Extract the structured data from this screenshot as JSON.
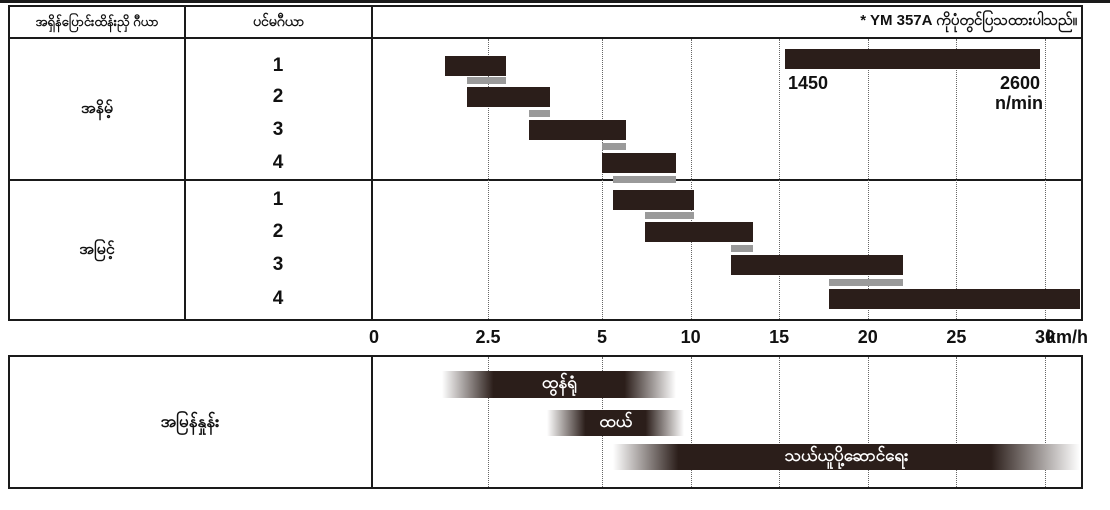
{
  "top_note": "* YM 357A ကိုပုံတွင်ပြသထားပါသည်။",
  "table": {
    "shift_gear_header": "အရှိန်ပြောင်းထိန်းညှိ ဂီယာ",
    "main_gear_header": "ပင်မဂီယာ",
    "low_range_label": "အနိမ့်",
    "high_range_label": "အမြင့်",
    "speed_row_label": "အမြန်နှုန်း"
  },
  "axis": {
    "unit": "km/h"
  },
  "rpm_legend": {
    "min_label": "1450",
    "max_label": "2600",
    "unit_label": "n/min"
  },
  "colors": {
    "bar": "#2b1e1a",
    "overlap": "#9a9a9a",
    "border": "#1a1a1a"
  },
  "chart_data": {
    "type": "bar",
    "subtype": "horizontal-speed-range-gantt",
    "title": "",
    "xlabel": "km/h",
    "x_ticks": [
      0,
      2.5,
      5,
      10,
      15,
      20,
      25,
      30
    ],
    "x_tick_labels": [
      "0",
      "2.5",
      "5",
      "10",
      "15",
      "20",
      "25",
      "30"
    ],
    "x_axis_note": "non-linear axis: 0-5 km/h segment expanded relative to 5-30 km/h",
    "grid": "dotted vertical lines at each tick above 0",
    "series": [
      {
        "range": "low",
        "gear": "1",
        "speed_kmh": [
          1.55,
          2.9
        ]
      },
      {
        "range": "low",
        "gear": "2",
        "speed_kmh": [
          2.05,
          3.85
        ]
      },
      {
        "range": "low",
        "gear": "3",
        "speed_kmh": [
          3.4,
          6.35
        ]
      },
      {
        "range": "low",
        "gear": "4",
        "speed_kmh": [
          5.0,
          9.2
        ]
      },
      {
        "range": "high",
        "gear": "1",
        "speed_kmh": [
          5.6,
          10.2
        ]
      },
      {
        "range": "high",
        "gear": "2",
        "speed_kmh": [
          7.45,
          13.5
        ]
      },
      {
        "range": "high",
        "gear": "3",
        "speed_kmh": [
          12.3,
          22.0
        ]
      },
      {
        "range": "high",
        "gear": "4",
        "speed_kmh": [
          17.8,
          32.0
        ]
      }
    ],
    "overlap_bars_note": "gray bars mark the overlap between each gear and the next higher gear",
    "engine_rpm_range": [
      1450,
      2600
    ],
    "engine_rpm_unit": "n/min",
    "work_bands": [
      {
        "label": "ထွန်ရုံ",
        "speed_kmh": [
          1.5,
          9.2
        ]
      },
      {
        "label": "ထယ်",
        "speed_kmh": [
          3.8,
          9.65
        ]
      },
      {
        "label": "သယ်ယူပို့ဆောင်ရေး",
        "speed_kmh": [
          5.6,
          32.0
        ]
      }
    ]
  }
}
